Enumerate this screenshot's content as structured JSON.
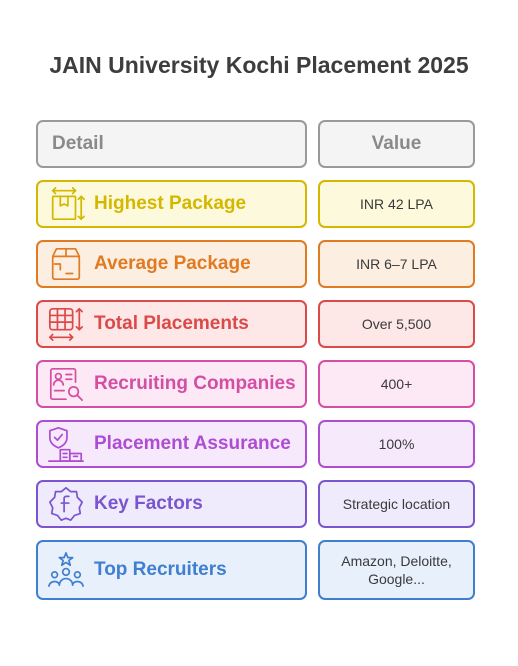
{
  "title": "JAIN University Kochi Placement 2025",
  "header": {
    "detail": "Detail",
    "value": "Value"
  },
  "rows": [
    {
      "label": "Highest Package",
      "value": "INR 42 LPA",
      "icon": "package-arrows-icon",
      "color": "#d4b800",
      "bg": "#fdf9dc"
    },
    {
      "label": "Average Package",
      "value": "INR 6–7 LPA",
      "icon": "open-box-icon",
      "color": "#e07b22",
      "bg": "#fdeee2"
    },
    {
      "label": "Total Placements",
      "value": "Over 5,500",
      "icon": "grid-resize-icon",
      "color": "#db4a4a",
      "bg": "#fde7e7"
    },
    {
      "label": "Recruiting Companies",
      "value": "400+",
      "icon": "profile-search-icon",
      "color": "#d24fa4",
      "bg": "#fde8f5"
    },
    {
      "label": "Placement Assurance",
      "value": "100%",
      "icon": "shield-buildings-icon",
      "color": "#ad4ed2",
      "bg": "#f7e9fc"
    },
    {
      "label": "Key Factors",
      "value": "Strategic location",
      "icon": "facebook-badge-icon",
      "color": "#7a55cf",
      "bg": "#efeafc"
    },
    {
      "label": "Top Recruiters",
      "value": "Amazon, Deloitte, Google...",
      "icon": "people-star-icon",
      "color": "#3f7fd0",
      "bg": "#e8f0fc"
    }
  ]
}
